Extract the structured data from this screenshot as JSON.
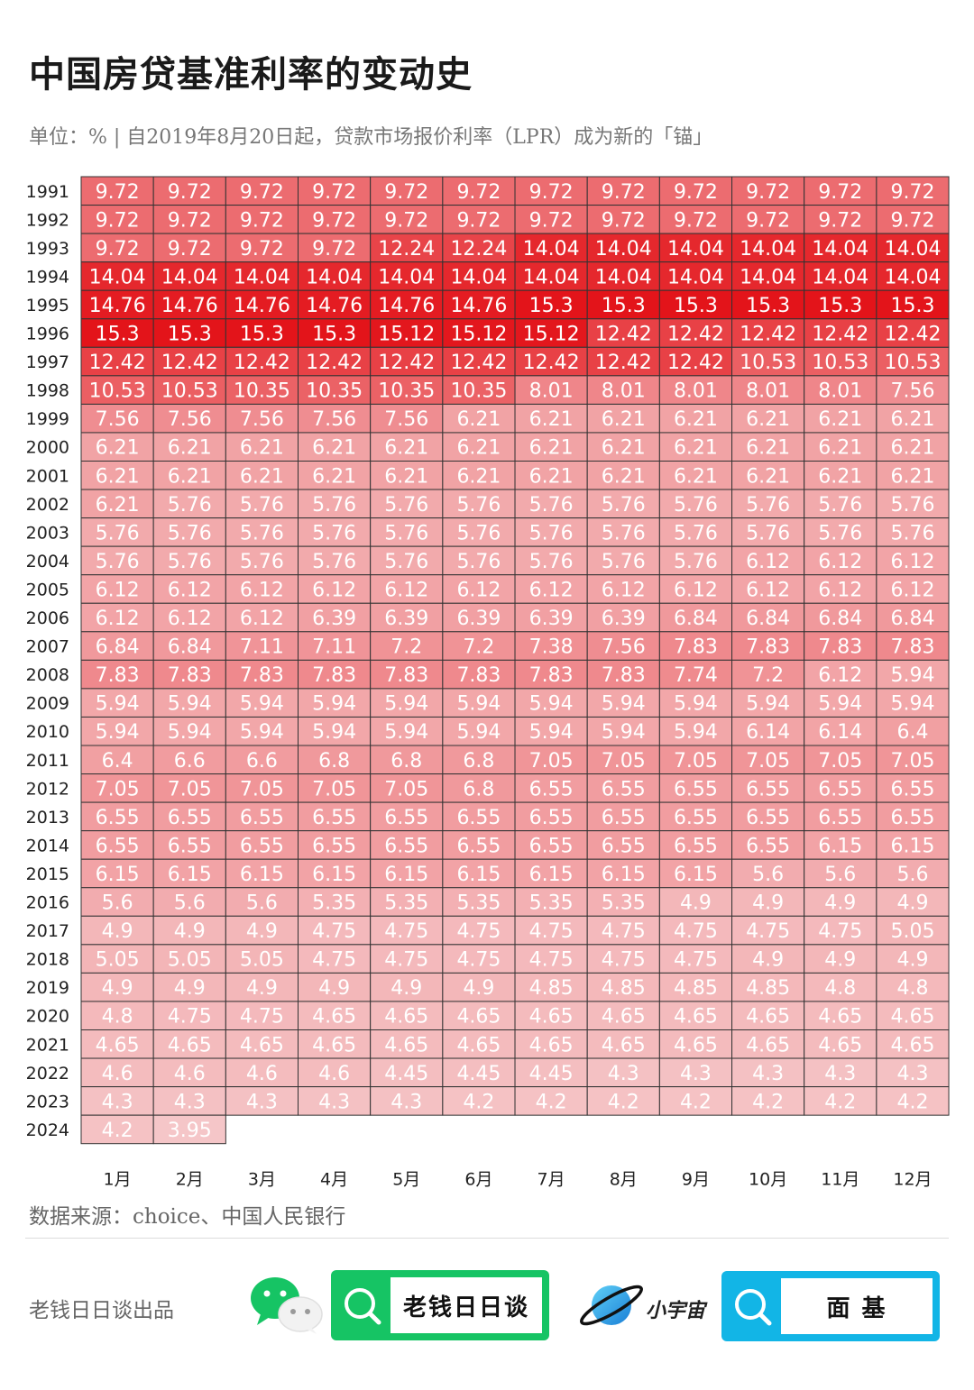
{
  "header": {
    "title": "中国房贷基准利率的变动史",
    "subtitle": "单位：% | 自2019年8月20日起，贷款市场报价利率（LPR）成为新的「锚」"
  },
  "chart_data": {
    "type": "heatmap",
    "title": "中国房贷基准利率的变动史",
    "unit": "%",
    "x_categories": [
      "1月",
      "2月",
      "3月",
      "4月",
      "5月",
      "6月",
      "7月",
      "8月",
      "9月",
      "10月",
      "11月",
      "12月"
    ],
    "y_categories": [
      "1991",
      "1992",
      "1993",
      "1994",
      "1995",
      "1996",
      "1997",
      "1998",
      "1999",
      "2000",
      "2001",
      "2002",
      "2003",
      "2004",
      "2005",
      "2006",
      "2007",
      "2008",
      "2009",
      "2010",
      "2011",
      "2012",
      "2013",
      "2014",
      "2015",
      "2016",
      "2017",
      "2018",
      "2019",
      "2020",
      "2021",
      "2022",
      "2023",
      "2024"
    ],
    "values": [
      [
        "9.72",
        "9.72",
        "9.72",
        "9.72",
        "9.72",
        "9.72",
        "9.72",
        "9.72",
        "9.72",
        "9.72",
        "9.72",
        "9.72"
      ],
      [
        "9.72",
        "9.72",
        "9.72",
        "9.72",
        "9.72",
        "9.72",
        "9.72",
        "9.72",
        "9.72",
        "9.72",
        "9.72",
        "9.72"
      ],
      [
        "9.72",
        "9.72",
        "9.72",
        "9.72",
        "12.24",
        "12.24",
        "14.04",
        "14.04",
        "14.04",
        "14.04",
        "14.04",
        "14.04"
      ],
      [
        "14.04",
        "14.04",
        "14.04",
        "14.04",
        "14.04",
        "14.04",
        "14.04",
        "14.04",
        "14.04",
        "14.04",
        "14.04",
        "14.04"
      ],
      [
        "14.76",
        "14.76",
        "14.76",
        "14.76",
        "14.76",
        "14.76",
        "15.3",
        "15.3",
        "15.3",
        "15.3",
        "15.3",
        "15.3"
      ],
      [
        "15.3",
        "15.3",
        "15.3",
        "15.3",
        "15.12",
        "15.12",
        "15.12",
        "12.42",
        "12.42",
        "12.42",
        "12.42",
        "12.42"
      ],
      [
        "12.42",
        "12.42",
        "12.42",
        "12.42",
        "12.42",
        "12.42",
        "12.42",
        "12.42",
        "12.42",
        "10.53",
        "10.53",
        "10.53"
      ],
      [
        "10.53",
        "10.53",
        "10.35",
        "10.35",
        "10.35",
        "10.35",
        "8.01",
        "8.01",
        "8.01",
        "8.01",
        "8.01",
        "7.56"
      ],
      [
        "7.56",
        "7.56",
        "7.56",
        "7.56",
        "7.56",
        "6.21",
        "6.21",
        "6.21",
        "6.21",
        "6.21",
        "6.21",
        "6.21"
      ],
      [
        "6.21",
        "6.21",
        "6.21",
        "6.21",
        "6.21",
        "6.21",
        "6.21",
        "6.21",
        "6.21",
        "6.21",
        "6.21",
        "6.21"
      ],
      [
        "6.21",
        "6.21",
        "6.21",
        "6.21",
        "6.21",
        "6.21",
        "6.21",
        "6.21",
        "6.21",
        "6.21",
        "6.21",
        "6.21"
      ],
      [
        "6.21",
        "5.76",
        "5.76",
        "5.76",
        "5.76",
        "5.76",
        "5.76",
        "5.76",
        "5.76",
        "5.76",
        "5.76",
        "5.76"
      ],
      [
        "5.76",
        "5.76",
        "5.76",
        "5.76",
        "5.76",
        "5.76",
        "5.76",
        "5.76",
        "5.76",
        "5.76",
        "5.76",
        "5.76"
      ],
      [
        "5.76",
        "5.76",
        "5.76",
        "5.76",
        "5.76",
        "5.76",
        "5.76",
        "5.76",
        "5.76",
        "6.12",
        "6.12",
        "6.12"
      ],
      [
        "6.12",
        "6.12",
        "6.12",
        "6.12",
        "6.12",
        "6.12",
        "6.12",
        "6.12",
        "6.12",
        "6.12",
        "6.12",
        "6.12"
      ],
      [
        "6.12",
        "6.12",
        "6.12",
        "6.39",
        "6.39",
        "6.39",
        "6.39",
        "6.39",
        "6.84",
        "6.84",
        "6.84",
        "6.84"
      ],
      [
        "6.84",
        "6.84",
        "7.11",
        "7.11",
        "7.2",
        "7.2",
        "7.38",
        "7.56",
        "7.83",
        "7.83",
        "7.83",
        "7.83"
      ],
      [
        "7.83",
        "7.83",
        "7.83",
        "7.83",
        "7.83",
        "7.83",
        "7.83",
        "7.83",
        "7.74",
        "7.2",
        "6.12",
        "5.94"
      ],
      [
        "5.94",
        "5.94",
        "5.94",
        "5.94",
        "5.94",
        "5.94",
        "5.94",
        "5.94",
        "5.94",
        "5.94",
        "5.94",
        "5.94"
      ],
      [
        "5.94",
        "5.94",
        "5.94",
        "5.94",
        "5.94",
        "5.94",
        "5.94",
        "5.94",
        "5.94",
        "6.14",
        "6.14",
        "6.4"
      ],
      [
        "6.4",
        "6.6",
        "6.6",
        "6.8",
        "6.8",
        "6.8",
        "7.05",
        "7.05",
        "7.05",
        "7.05",
        "7.05",
        "7.05"
      ],
      [
        "7.05",
        "7.05",
        "7.05",
        "7.05",
        "7.05",
        "6.8",
        "6.55",
        "6.55",
        "6.55",
        "6.55",
        "6.55",
        "6.55"
      ],
      [
        "6.55",
        "6.55",
        "6.55",
        "6.55",
        "6.55",
        "6.55",
        "6.55",
        "6.55",
        "6.55",
        "6.55",
        "6.55",
        "6.55"
      ],
      [
        "6.55",
        "6.55",
        "6.55",
        "6.55",
        "6.55",
        "6.55",
        "6.55",
        "6.55",
        "6.55",
        "6.55",
        "6.15",
        "6.15"
      ],
      [
        "6.15",
        "6.15",
        "6.15",
        "6.15",
        "6.15",
        "6.15",
        "6.15",
        "6.15",
        "6.15",
        "5.6",
        "5.6",
        "5.6"
      ],
      [
        "5.6",
        "5.6",
        "5.6",
        "5.35",
        "5.35",
        "5.35",
        "5.35",
        "5.35",
        "4.9",
        "4.9",
        "4.9",
        "4.9"
      ],
      [
        "4.9",
        "4.9",
        "4.9",
        "4.75",
        "4.75",
        "4.75",
        "4.75",
        "4.75",
        "4.75",
        "4.75",
        "4.75",
        "5.05"
      ],
      [
        "5.05",
        "5.05",
        "5.05",
        "4.75",
        "4.75",
        "4.75",
        "4.75",
        "4.75",
        "4.75",
        "4.9",
        "4.9",
        "4.9"
      ],
      [
        "4.9",
        "4.9",
        "4.9",
        "4.9",
        "4.9",
        "4.9",
        "4.85",
        "4.85",
        "4.85",
        "4.85",
        "4.8",
        "4.8"
      ],
      [
        "4.8",
        "4.75",
        "4.75",
        "4.65",
        "4.65",
        "4.65",
        "4.65",
        "4.65",
        "4.65",
        "4.65",
        "4.65",
        "4.65"
      ],
      [
        "4.65",
        "4.65",
        "4.65",
        "4.65",
        "4.65",
        "4.65",
        "4.65",
        "4.65",
        "4.65",
        "4.65",
        "4.65",
        "4.65"
      ],
      [
        "4.6",
        "4.6",
        "4.6",
        "4.6",
        "4.45",
        "4.45",
        "4.45",
        "4.3",
        "4.3",
        "4.3",
        "4.3",
        "4.3"
      ],
      [
        "4.3",
        "4.3",
        "4.3",
        "4.3",
        "4.3",
        "4.2",
        "4.2",
        "4.2",
        "4.2",
        "4.2",
        "4.2",
        "4.2"
      ],
      [
        "4.2",
        "3.95"
      ]
    ],
    "value_range": [
      3.95,
      15.3
    ],
    "colors": {
      "low": "#f5c6c8",
      "high": "#e3141a",
      "grid": "#333333",
      "text": "#ffffff"
    }
  },
  "footer": {
    "source": "数据来源：choice、中国人民银行",
    "credit": "老钱日日谈出品",
    "search_1": "老钱日日谈",
    "planet_label": "小宇宙",
    "search_2": "面 基"
  },
  "brand_colors": {
    "wechat": "#16c464",
    "xiaoyuzhou": "#12b5e6"
  }
}
